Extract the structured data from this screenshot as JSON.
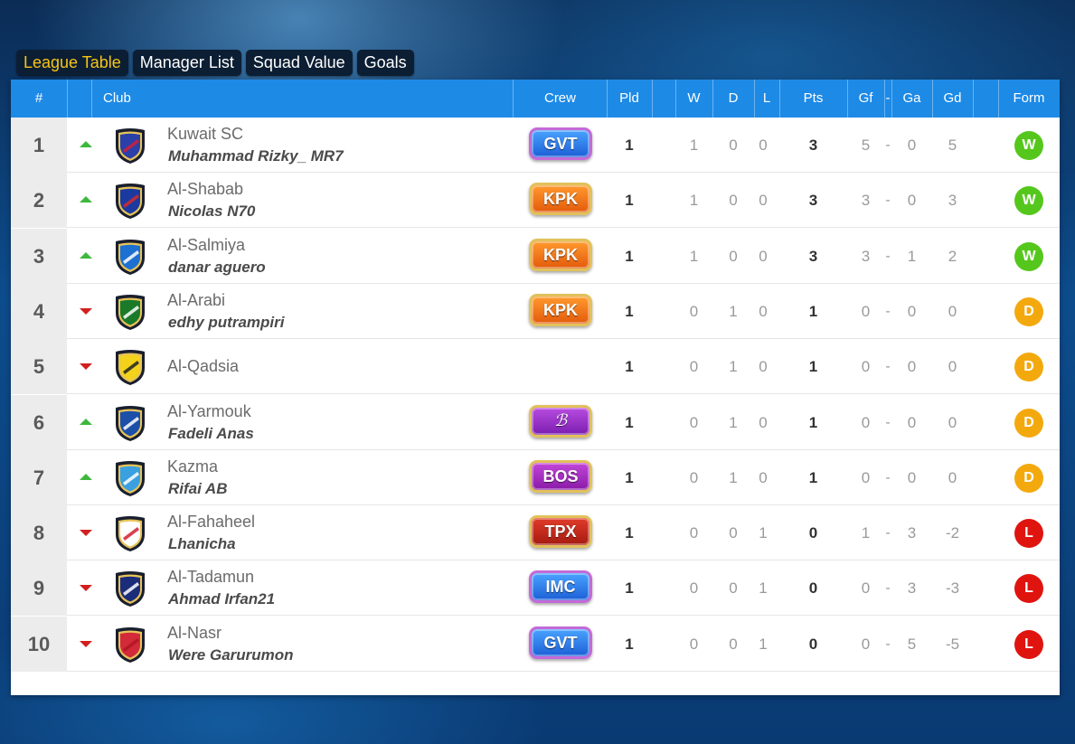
{
  "tabs": [
    {
      "label": "League Table",
      "active": true
    },
    {
      "label": "Manager List",
      "active": false
    },
    {
      "label": "Squad Value",
      "active": false
    },
    {
      "label": "Goals",
      "active": false
    }
  ],
  "header": {
    "rank": "#",
    "club": "Club",
    "crew": "Crew",
    "pld": "Pld",
    "w": "W",
    "d": "D",
    "l": "L",
    "pts": "Pts",
    "gf": "Gf",
    "dash": "-",
    "ga": "Ga",
    "gd": "Gd",
    "form": "Form"
  },
  "colors": {
    "header_bg": "#1d8ae6",
    "active_tab_text": "#f5c518",
    "win": "#55c71c",
    "draw": "#f3a90e",
    "loss": "#e0140f",
    "trend_up": "#3db83d",
    "trend_down": "#d21f1f"
  },
  "rows": [
    {
      "rank": "1",
      "trend": "up",
      "crest": "crest-red-blue",
      "club": "Kuwait SC",
      "manager": "Muhammad Rizky_ MR7",
      "crew": "GVT",
      "crew_style": "gvt",
      "pld": "1",
      "w": "1",
      "d": "0",
      "l": "0",
      "pts": "3",
      "gf": "5",
      "dash": "-",
      "ga": "0",
      "gd": "5",
      "form": "W"
    },
    {
      "rank": "2",
      "trend": "up",
      "crest": "crest-tricolor",
      "club": "Al-Shabab",
      "manager": "Nicolas N70",
      "crew": "KPK",
      "crew_style": "kpk",
      "pld": "1",
      "w": "1",
      "d": "0",
      "l": "0",
      "pts": "3",
      "gf": "3",
      "dash": "-",
      "ga": "0",
      "gd": "3",
      "form": "W"
    },
    {
      "rank": "3",
      "trend": "up",
      "crest": "crest-blue-sash",
      "club": "Al-Salmiya",
      "manager": "danar aguero",
      "crew": "KPK",
      "crew_style": "kpk",
      "pld": "1",
      "w": "1",
      "d": "0",
      "l": "0",
      "pts": "3",
      "gf": "3",
      "dash": "-",
      "ga": "1",
      "gd": "2",
      "form": "W"
    },
    {
      "rank": "4",
      "trend": "down",
      "crest": "crest-green-sash",
      "club": "Al-Arabi",
      "manager": "edhy putrampiri",
      "crew": "KPK",
      "crew_style": "kpk",
      "pld": "1",
      "w": "0",
      "d": "1",
      "l": "0",
      "pts": "1",
      "gf": "0",
      "dash": "-",
      "ga": "0",
      "gd": "0",
      "form": "D"
    },
    {
      "rank": "5",
      "trend": "down",
      "crest": "crest-yellow",
      "club": "Al-Qadsia",
      "manager": "",
      "crew": "",
      "crew_style": "",
      "pld": "1",
      "w": "0",
      "d": "1",
      "l": "0",
      "pts": "1",
      "gf": "0",
      "dash": "-",
      "ga": "0",
      "gd": "0",
      "form": "D"
    },
    {
      "rank": "6",
      "trend": "up",
      "crest": "crest-blue-stripes",
      "club": "Al-Yarmouk",
      "manager": "Fadeli Anas",
      "crew": "ℬ",
      "crew_style": "b",
      "pld": "1",
      "w": "0",
      "d": "1",
      "l": "0",
      "pts": "1",
      "gf": "0",
      "dash": "-",
      "ga": "0",
      "gd": "0",
      "form": "D"
    },
    {
      "rank": "7",
      "trend": "up",
      "crest": "crest-sky-blue",
      "club": "Kazma",
      "manager": "Rifai AB",
      "crew": "BOS",
      "crew_style": "bos",
      "pld": "1",
      "w": "0",
      "d": "1",
      "l": "0",
      "pts": "1",
      "gf": "0",
      "dash": "-",
      "ga": "0",
      "gd": "0",
      "form": "D"
    },
    {
      "rank": "8",
      "trend": "down",
      "crest": "crest-red-chevron",
      "club": "Al-Fahaheel",
      "manager": "Lhanicha",
      "crew": "TPX",
      "crew_style": "tpx",
      "pld": "1",
      "w": "0",
      "d": "0",
      "l": "1",
      "pts": "0",
      "gf": "1",
      "dash": "-",
      "ga": "3",
      "gd": "-2",
      "form": "L"
    },
    {
      "rank": "9",
      "trend": "down",
      "crest": "crest-navy-stripes",
      "club": "Al-Tadamun",
      "manager": "Ahmad Irfan21",
      "crew": "IMC",
      "crew_style": "imc",
      "pld": "1",
      "w": "0",
      "d": "0",
      "l": "1",
      "pts": "0",
      "gf": "0",
      "dash": "-",
      "ga": "3",
      "gd": "-3",
      "form": "L"
    },
    {
      "rank": "10",
      "trend": "down",
      "crest": "crest-red",
      "club": "Al-Nasr",
      "manager": "Were Garurumon",
      "crew": "GVT",
      "crew_style": "gvt",
      "pld": "1",
      "w": "0",
      "d": "0",
      "l": "1",
      "pts": "0",
      "gf": "0",
      "dash": "-",
      "ga": "5",
      "gd": "-5",
      "form": "L"
    }
  ]
}
